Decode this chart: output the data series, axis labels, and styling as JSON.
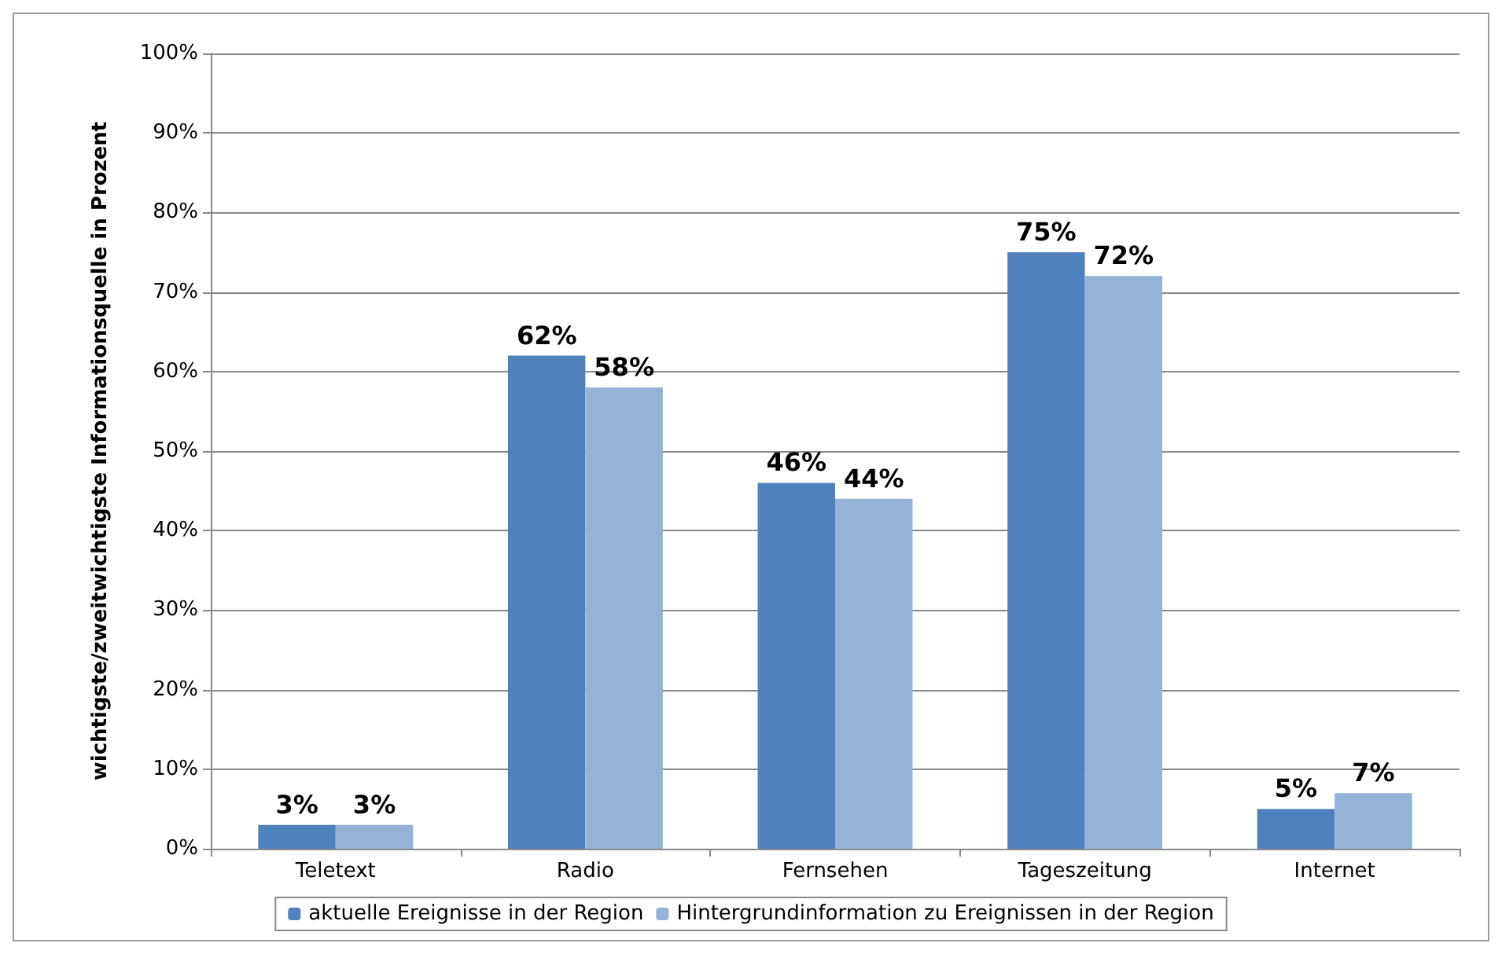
{
  "chart_data": {
    "type": "bar",
    "ylabel": "wichtigste/zweitwichtigste Informationsquelle in Prozent",
    "categories": [
      "Teletext",
      "Radio",
      "Fernsehen",
      "Tageszeitung",
      "Internet"
    ],
    "series": [
      {
        "name": "aktuelle Ereignisse in der Region",
        "color": "#4f81bd",
        "values": [
          3,
          62,
          46,
          75,
          5
        ],
        "value_labels": [
          "3%",
          "62%",
          "46%",
          "75%",
          "5%"
        ]
      },
      {
        "name": "Hintergrundinformation zu Ereignissen in der Region",
        "color": "#95b3d7",
        "values": [
          3,
          58,
          44,
          72,
          7
        ],
        "value_labels": [
          "3%",
          "58%",
          "44%",
          "72%",
          "7%"
        ]
      }
    ],
    "ylim": [
      0,
      100
    ],
    "yticks": [
      {
        "value": 0,
        "label": "0%"
      },
      {
        "value": 10,
        "label": "10%"
      },
      {
        "value": 20,
        "label": "20%"
      },
      {
        "value": 30,
        "label": "30%"
      },
      {
        "value": 40,
        "label": "40%"
      },
      {
        "value": 50,
        "label": "50%"
      },
      {
        "value": 60,
        "label": "60%"
      },
      {
        "value": 70,
        "label": "70%"
      },
      {
        "value": 80,
        "label": "80%"
      },
      {
        "value": 90,
        "label": "90%"
      },
      {
        "value": 100,
        "label": "100%"
      }
    ],
    "grid": "y",
    "legend": "bottom"
  }
}
